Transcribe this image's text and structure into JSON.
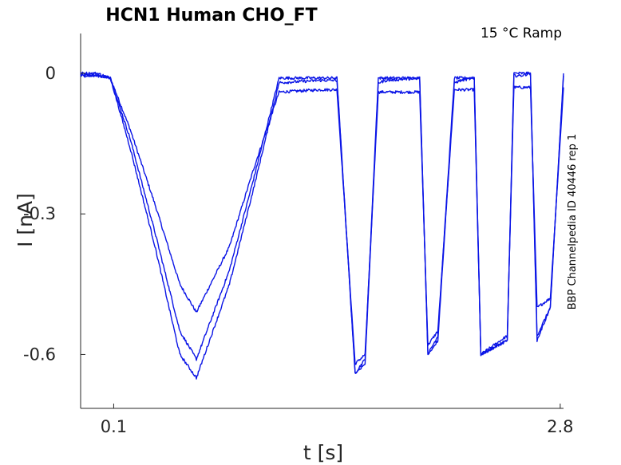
{
  "chart_data": {
    "type": "line",
    "title": "HCN1  Human  CHO_FT",
    "annotation": "15 °C  Ramp",
    "side_label": "BBP Channelpedia ID 40446 rep 1",
    "xlabel": "t [s]",
    "ylabel": "I [nA]",
    "xlim": [
      -0.1,
      2.82
    ],
    "ylim": [
      -0.715,
      0.085
    ],
    "x_ticks": [
      0.1,
      2.8
    ],
    "x_tick_labels": [
      "0.1",
      "2.8"
    ],
    "y_ticks": [
      0,
      -0.3,
      -0.6
    ],
    "y_tick_labels": [
      "0",
      "-0.3",
      "-0.6"
    ],
    "grid": false,
    "color": "#0a14e6",
    "series": [
      {
        "x": [
          -0.1,
          0.0,
          0.08,
          0.2,
          0.35,
          0.5,
          0.6,
          0.8,
          0.95,
          1.1,
          1.35,
          1.45,
          1.56,
          1.62,
          1.7,
          1.75,
          1.95,
          2.0,
          2.06,
          2.16,
          2.2,
          2.28,
          2.32,
          2.48,
          2.52,
          2.56,
          2.62,
          2.66,
          2.74,
          2.82
        ],
        "y": [
          -0.005,
          -0.005,
          -0.01,
          -0.12,
          -0.28,
          -0.45,
          -0.51,
          -0.37,
          -0.2,
          -0.04,
          -0.035,
          -0.035,
          -0.62,
          -0.6,
          -0.04,
          -0.04,
          -0.04,
          -0.58,
          -0.55,
          -0.035,
          -0.035,
          -0.035,
          -0.6,
          -0.56,
          -0.03,
          -0.03,
          -0.03,
          -0.5,
          -0.48,
          -0.03
        ]
      },
      {
        "x": [
          -0.1,
          0.0,
          0.08,
          0.2,
          0.35,
          0.5,
          0.6,
          0.8,
          0.95,
          1.1,
          1.35,
          1.45,
          1.56,
          1.62,
          1.7,
          1.75,
          1.95,
          2.0,
          2.06,
          2.16,
          2.2,
          2.28,
          2.32,
          2.48,
          2.52,
          2.56,
          2.62,
          2.66,
          2.74,
          2.82
        ],
        "y": [
          0.0,
          0.0,
          -0.01,
          -0.14,
          -0.34,
          -0.55,
          -0.61,
          -0.42,
          -0.22,
          -0.01,
          -0.01,
          -0.01,
          -0.64,
          -0.61,
          -0.01,
          -0.01,
          -0.01,
          -0.6,
          -0.56,
          -0.01,
          -0.01,
          -0.01,
          -0.6,
          -0.57,
          0.0,
          0.0,
          0.0,
          -0.56,
          -0.5,
          0.0
        ]
      },
      {
        "x": [
          -0.1,
          0.0,
          0.08,
          0.2,
          0.35,
          0.5,
          0.6,
          0.8,
          0.95,
          1.1,
          1.35,
          1.45,
          1.56,
          1.62,
          1.7,
          1.75,
          1.95,
          2.0,
          2.06,
          2.16,
          2.2,
          2.28,
          2.32,
          2.48,
          2.52,
          2.56,
          2.62,
          2.66,
          2.74,
          2.82
        ],
        "y": [
          -0.005,
          -0.005,
          -0.01,
          -0.16,
          -0.37,
          -0.6,
          -0.65,
          -0.45,
          -0.24,
          -0.02,
          -0.015,
          -0.015,
          -0.64,
          -0.62,
          -0.02,
          -0.015,
          -0.01,
          -0.6,
          -0.57,
          -0.02,
          -0.015,
          -0.01,
          -0.6,
          -0.57,
          -0.005,
          -0.005,
          0.0,
          -0.57,
          -0.5,
          -0.005
        ]
      }
    ]
  }
}
